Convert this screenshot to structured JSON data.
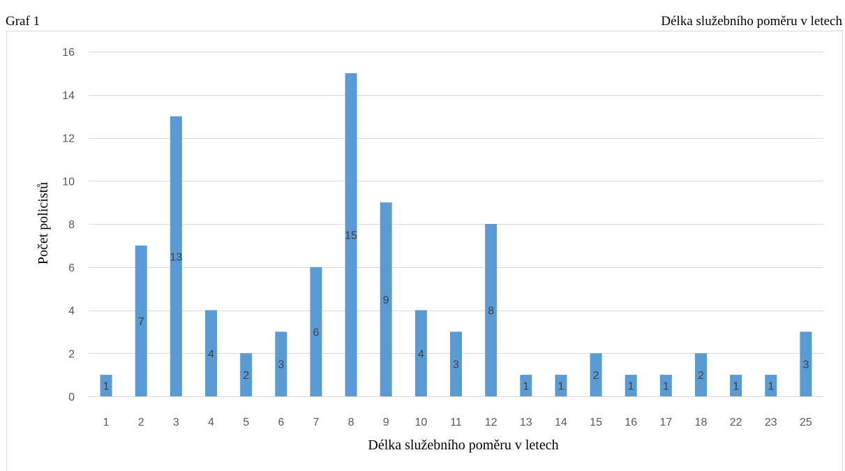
{
  "caption": {
    "left": "Graf 1",
    "right": "Délka služebního poměru v letech"
  },
  "chart_data": {
    "type": "bar",
    "categories": [
      "1",
      "2",
      "3",
      "4",
      "5",
      "6",
      "7",
      "8",
      "9",
      "10",
      "11",
      "12",
      "13",
      "14",
      "15",
      "16",
      "17",
      "18",
      "22",
      "23",
      "25"
    ],
    "values": [
      1,
      7,
      13,
      4,
      2,
      3,
      6,
      15,
      9,
      4,
      3,
      8,
      1,
      1,
      2,
      1,
      1,
      2,
      1,
      1,
      3
    ],
    "xlabel": "Délka služebního poměru v letech",
    "ylabel": "Počet policistů",
    "ylim": [
      0,
      16
    ],
    "yticks": [
      0,
      2,
      4,
      6,
      8,
      10,
      12,
      14,
      16
    ],
    "grid": true,
    "legend": "none",
    "bar_color": "#5b9bd5",
    "data_labels": true
  }
}
